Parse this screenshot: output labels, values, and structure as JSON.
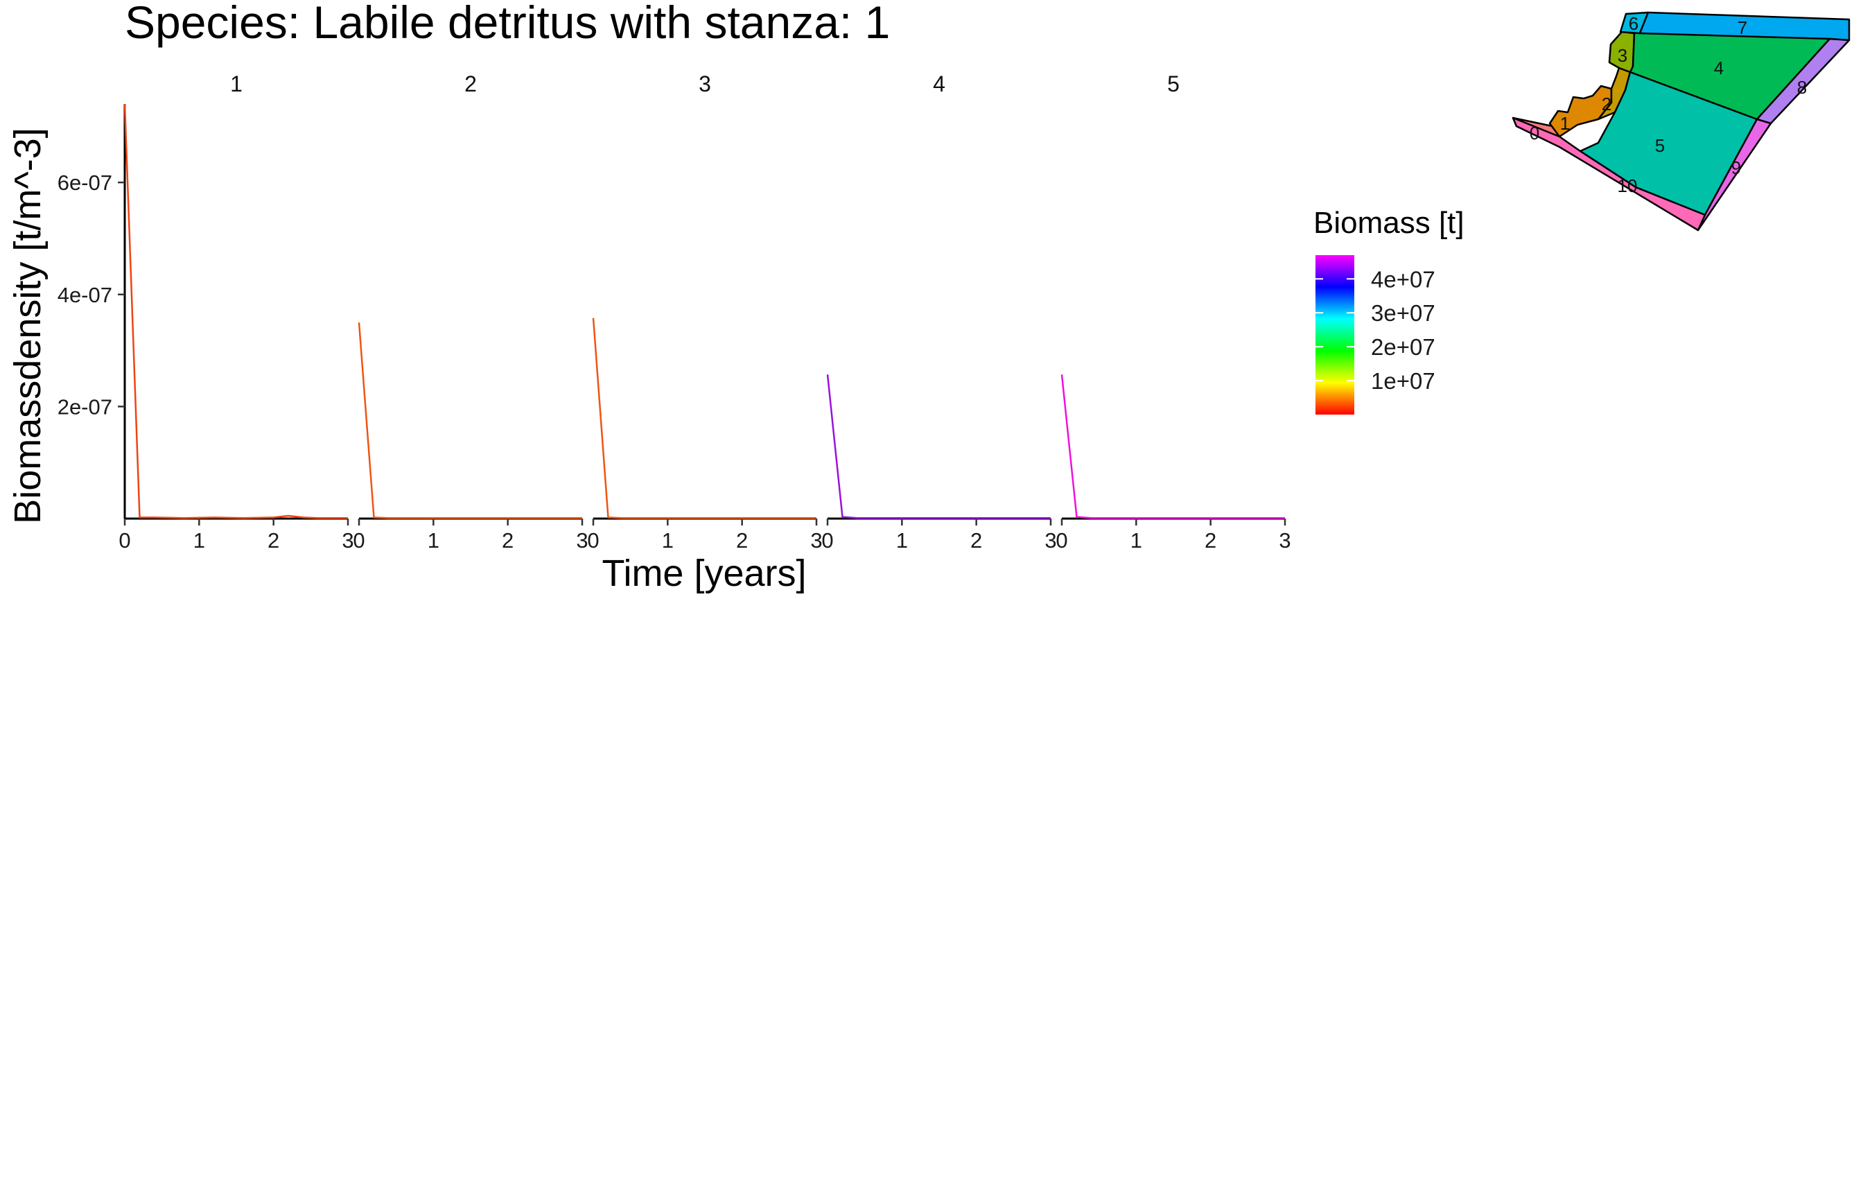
{
  "chart_data": {
    "type": "line",
    "title": "Species: Labile detritus with stanza: 1",
    "xlabel": "Time [years]",
    "ylabel": "Biomassdensity [t/m^-3]",
    "xlim": [
      0,
      3
    ],
    "ylim": [
      0,
      7.4e-07
    ],
    "x_ticks": [
      0,
      1,
      2,
      3
    ],
    "x_tick_labels": [
      "0",
      "1",
      "2",
      "3"
    ],
    "y_ticks": [
      2e-07,
      4e-07,
      6e-07
    ],
    "y_tick_labels": [
      "2e-07",
      "4e-07",
      "6e-07"
    ],
    "grid": false,
    "facets": [
      {
        "label": "1",
        "x": [
          0,
          0.2,
          0.4,
          0.8,
          1.2,
          1.6,
          2.0,
          2.2,
          2.4,
          2.6,
          2.8,
          3.0
        ],
        "y": [
          7.4e-07,
          2e-09,
          2e-09,
          1e-09,
          2e-09,
          1e-09,
          2e-09,
          5e-09,
          2e-09,
          1e-09,
          1e-09,
          1e-09
        ],
        "biomass": 2000000.0,
        "color": "#ee4411"
      },
      {
        "label": "2",
        "x": [
          0,
          0.2,
          0.4,
          0.8,
          1.2,
          1.6,
          2.0,
          2.4,
          2.8,
          3.0
        ],
        "y": [
          3.5e-07,
          2e-09,
          1e-09,
          1e-09,
          1e-09,
          1e-09,
          1e-09,
          1e-09,
          1e-09,
          1e-09
        ],
        "biomass": 2500000.0,
        "color": "#ee5511"
      },
      {
        "label": "3",
        "x": [
          0,
          0.2,
          0.4,
          0.8,
          1.2,
          1.6,
          2.0,
          2.4,
          2.8,
          3.0
        ],
        "y": [
          3.58e-07,
          2e-09,
          1e-09,
          1e-09,
          1e-09,
          1e-09,
          1e-09,
          1e-09,
          1e-09,
          1e-09
        ],
        "biomass": 2500000.0,
        "color": "#ee5511"
      },
      {
        "label": "4",
        "x": [
          0,
          0.2,
          0.4,
          0.8,
          1.2,
          1.6,
          2.0,
          2.4,
          2.8,
          3.0
        ],
        "y": [
          2.57e-07,
          3e-09,
          1e-09,
          1e-09,
          1e-09,
          1e-09,
          1e-09,
          1e-09,
          1e-09,
          1e-09
        ],
        "biomass": 42000000.0,
        "color": "#9911dd"
      },
      {
        "label": "5",
        "x": [
          0,
          0.2,
          0.4,
          0.8,
          1.2,
          1.6,
          2.0,
          2.4,
          2.8,
          3.0
        ],
        "y": [
          2.57e-07,
          3e-09,
          1e-09,
          1e-09,
          1e-09,
          1e-09,
          1e-09,
          1e-09,
          1e-09,
          1e-09
        ],
        "biomass": 46000000.0,
        "color": "#ee11dd"
      }
    ],
    "legend": {
      "title": "Biomass [t]",
      "placement": "right",
      "ticks": [
        10000000.0,
        20000000.0,
        30000000.0,
        40000000.0
      ],
      "tick_labels": [
        "1e+07",
        "2e+07",
        "3e+07",
        "4e+07"
      ],
      "range": [
        0,
        47000000.0
      ],
      "gradient": [
        "#ff0000",
        "#ffff00",
        "#00ff00",
        "#00ffff",
        "#0000ff",
        "#ff00ff"
      ]
    },
    "map": {
      "boxes": [
        {
          "id": "0",
          "color": "#f47a7a"
        },
        {
          "id": "1",
          "color": "#dd8800"
        },
        {
          "id": "2",
          "color": "#c49a00"
        },
        {
          "id": "3",
          "color": "#8ab000"
        },
        {
          "id": "4",
          "color": "#00bb55"
        },
        {
          "id": "5",
          "color": "#00c0a8"
        },
        {
          "id": "6",
          "color": "#00b8e0"
        },
        {
          "id": "7",
          "color": "#00a8f0"
        },
        {
          "id": "8",
          "color": "#b080f0"
        },
        {
          "id": "9",
          "color": "#e866e8"
        },
        {
          "id": "10",
          "color": "#ff6ab8"
        }
      ]
    }
  }
}
